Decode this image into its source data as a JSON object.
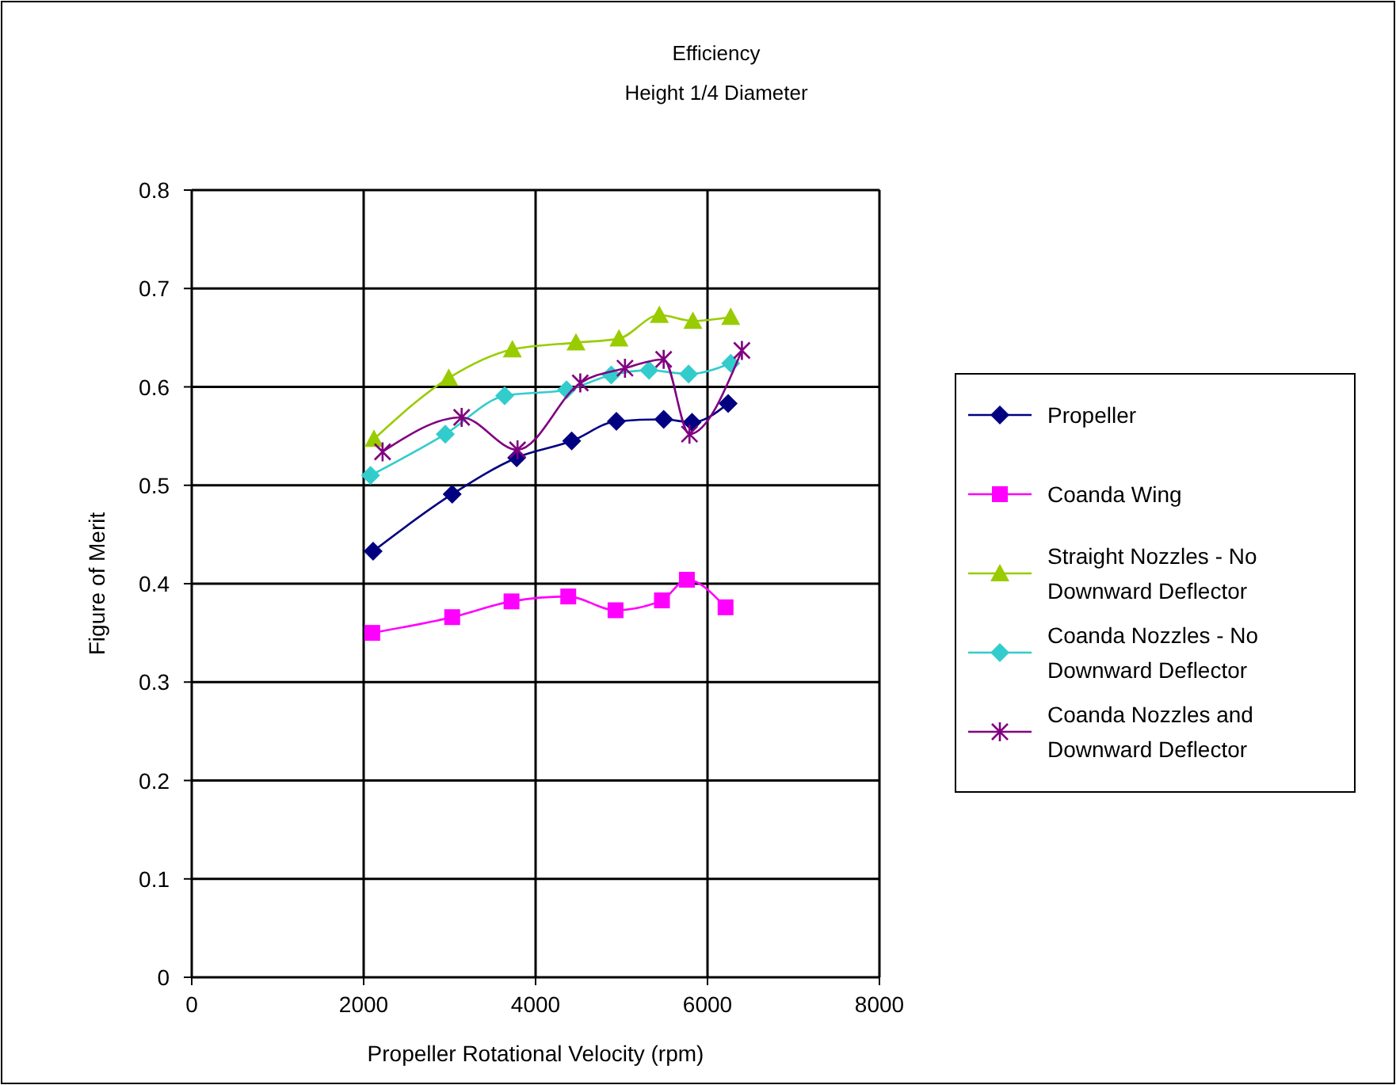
{
  "chart_data": {
    "type": "line",
    "title": "Efficiency",
    "subtitle": "Height 1/4 Diameter",
    "xlabel": "Propeller Rotational Velocity (rpm)",
    "ylabel": "Figure of Merit",
    "xlim": [
      0,
      8000
    ],
    "xticks": [
      0,
      2000,
      4000,
      6000,
      8000
    ],
    "ylim": [
      0,
      0.8
    ],
    "yticks": [
      0,
      0.1,
      0.2,
      0.3,
      0.4,
      0.5,
      0.6,
      0.7,
      0.8
    ],
    "grid": true,
    "legend": "right",
    "line_style": "solid",
    "series": [
      {
        "name": "Propeller",
        "color": "#000080",
        "marker": "diamond",
        "x": [
          2110,
          3030,
          3780,
          4420,
          4940,
          5490,
          5820,
          6240
        ],
        "values": [
          0.433,
          0.491,
          0.528,
          0.545,
          0.565,
          0.567,
          0.564,
          0.583
        ]
      },
      {
        "name": "Coanda Wing",
        "color": "#ff00ff",
        "marker": "square",
        "x": [
          2100,
          3030,
          3720,
          4380,
          4930,
          5470,
          5760,
          6210
        ],
        "values": [
          0.35,
          0.366,
          0.382,
          0.387,
          0.373,
          0.383,
          0.404,
          0.376
        ]
      },
      {
        "name": "Straight Nozzles - No Downward Deflector",
        "color": "#99cc00",
        "marker": "triangle",
        "x": [
          2120,
          2990,
          3730,
          4470,
          4970,
          5440,
          5830,
          6270
        ],
        "values": [
          0.547,
          0.609,
          0.638,
          0.645,
          0.649,
          0.673,
          0.667,
          0.671
        ]
      },
      {
        "name": "Coanda Nozzles - No Downward Deflector",
        "color": "#33cccc",
        "marker": "diamond",
        "x": [
          2080,
          2950,
          3640,
          4360,
          4880,
          5320,
          5780,
          6270
        ],
        "values": [
          0.51,
          0.552,
          0.591,
          0.597,
          0.612,
          0.617,
          0.613,
          0.624
        ]
      },
      {
        "name": "Coanda Nozzles and Downward Deflector",
        "color": "#800080",
        "marker": "cross",
        "x": [
          2220,
          3140,
          3790,
          4520,
          5040,
          5490,
          5790,
          6400
        ],
        "values": [
          0.534,
          0.569,
          0.536,
          0.604,
          0.619,
          0.628,
          0.552,
          0.637
        ]
      }
    ]
  }
}
